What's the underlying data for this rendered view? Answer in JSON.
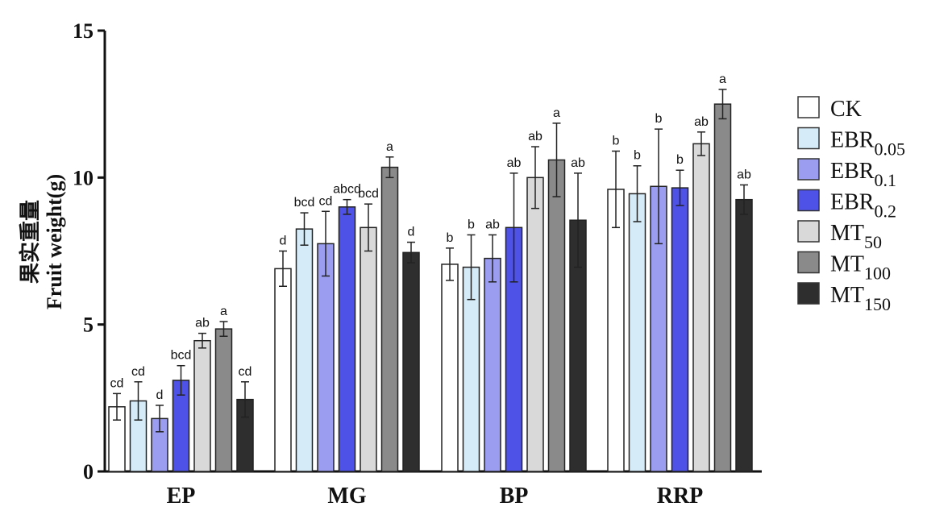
{
  "chart_data": {
    "type": "bar",
    "ylabel_cn": "果实重量",
    "ylabel": "Fruit weight(g)",
    "ylim": [
      0,
      15
    ],
    "yticks": [
      "0",
      "5",
      "10",
      "15"
    ],
    "grid": false,
    "legend_position": "right",
    "categories": [
      "EP",
      "MG",
      "BP",
      "RRP"
    ],
    "series": [
      {
        "name": "CK",
        "base": "CK",
        "sub": "",
        "color": "#ffffff",
        "values": [
          2.2,
          6.9,
          7.05,
          9.6
        ],
        "errors": [
          0.45,
          0.6,
          0.55,
          1.3
        ],
        "labels": [
          "cd",
          "d",
          "b",
          "b"
        ]
      },
      {
        "name": "EBR0.05",
        "base": "EBR",
        "sub": "0.05",
        "color": "#d5ebf7",
        "values": [
          2.4,
          8.25,
          6.95,
          9.45
        ],
        "errors": [
          0.65,
          0.55,
          1.1,
          0.95
        ],
        "labels": [
          "cd",
          "bcd",
          "b",
          "b"
        ]
      },
      {
        "name": "EBR0.1",
        "base": "EBR",
        "sub": "0.1",
        "color": "#9b9ef0",
        "values": [
          1.8,
          7.75,
          7.25,
          9.7
        ],
        "errors": [
          0.45,
          1.1,
          0.8,
          1.95
        ],
        "labels": [
          "d",
          "cd",
          "ab",
          "b"
        ]
      },
      {
        "name": "EBR0.2",
        "base": "EBR",
        "sub": "0.2",
        "color": "#4f52e6",
        "values": [
          3.1,
          9.0,
          8.3,
          9.65
        ],
        "errors": [
          0.5,
          0.25,
          1.85,
          0.6
        ],
        "labels": [
          "bcd",
          "abcd",
          "ab",
          "b"
        ]
      },
      {
        "name": "MT50",
        "base": "MT",
        "sub": "50",
        "color": "#d9d9d9",
        "values": [
          4.45,
          8.3,
          10.0,
          11.15
        ],
        "errors": [
          0.25,
          0.8,
          1.05,
          0.4
        ],
        "labels": [
          "ab",
          "bcd",
          "ab",
          "ab"
        ]
      },
      {
        "name": "MT100",
        "base": "MT",
        "sub": "100",
        "color": "#8a8a8a",
        "values": [
          4.85,
          10.35,
          10.6,
          12.5
        ],
        "errors": [
          0.25,
          0.35,
          1.25,
          0.5
        ],
        "labels": [
          "a",
          "a",
          "a",
          "a"
        ]
      },
      {
        "name": "MT150",
        "base": "MT",
        "sub": "150",
        "color": "#2e2e2e",
        "values": [
          2.45,
          7.45,
          8.55,
          9.25
        ],
        "errors": [
          0.6,
          0.35,
          1.6,
          0.5
        ],
        "labels": [
          "cd",
          "d",
          "ab",
          "ab"
        ]
      }
    ]
  }
}
